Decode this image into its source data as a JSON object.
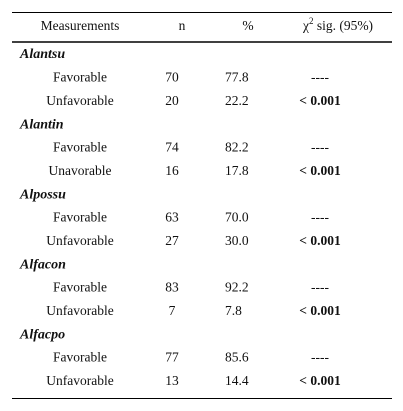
{
  "table": {
    "header": {
      "measurements": "Measurements",
      "n": "n",
      "percent": "%",
      "sig": {
        "symbol": "χ",
        "sup": "2",
        "rest": " sig. (95%)"
      }
    },
    "groups": [
      {
        "name": "Alantsu",
        "rows": [
          [
            "Favorable",
            "70",
            "77.8",
            "----"
          ],
          [
            "Unfavorable",
            "20",
            "22.2",
            "< 0.001"
          ]
        ]
      },
      {
        "name": "Alantin",
        "rows": [
          [
            "Favorable",
            "74",
            "82.2",
            "----"
          ],
          [
            "Unavorable",
            "16",
            "17.8",
            "< 0.001"
          ]
        ]
      },
      {
        "name": "Alpossu",
        "rows": [
          [
            "Favorable",
            "63",
            "70.0",
            "----"
          ],
          [
            "Unfavorable",
            "27",
            "30.0",
            "< 0.001"
          ]
        ]
      },
      {
        "name": "Alfacon",
        "rows": [
          [
            "Favorable",
            "83",
            "92.2",
            "----"
          ],
          [
            "Unfavorable",
            "7",
            "7.8",
            "< 0.001"
          ]
        ]
      },
      {
        "name": "Alfacpo",
        "rows": [
          [
            "Favorable",
            "77",
            "85.6",
            "----"
          ],
          [
            "Unfavorable",
            "13",
            "14.4",
            "< 0.001"
          ]
        ]
      }
    ]
  }
}
